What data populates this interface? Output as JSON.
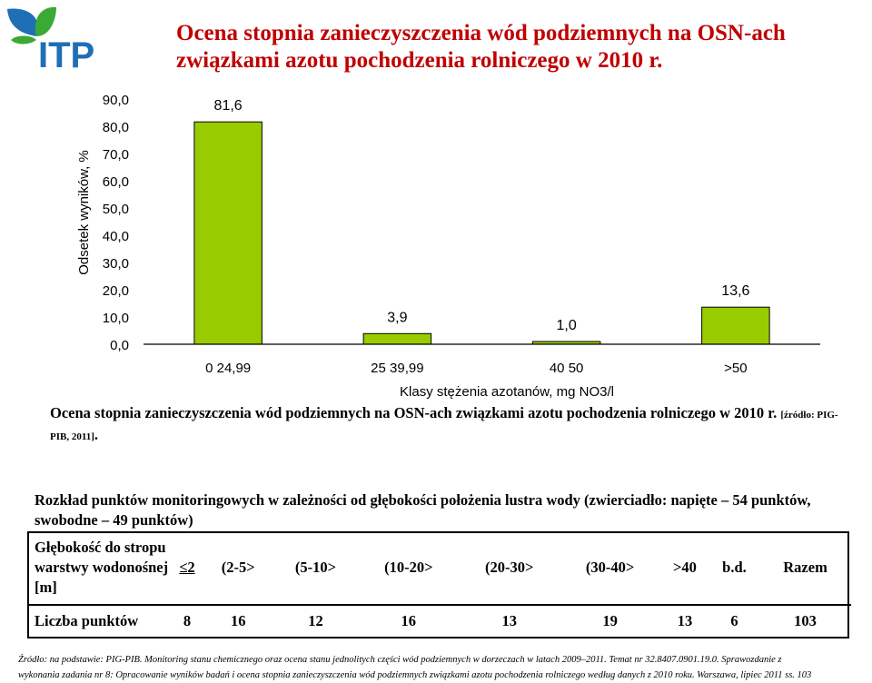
{
  "logo": {
    "text": "ITP",
    "colors": {
      "leaf_blue": "#1f6fb5",
      "leaf_green": "#3aaa35",
      "text": "#1f6fb5"
    }
  },
  "title": "Ocena stopnia zanieczyszczenia wód podziemnych na OSN-ach związkami azotu pochodzenia rolniczego w 2010 r.",
  "chart_data": {
    "type": "bar",
    "categories": [
      "0 24,99",
      "25 39,99",
      "40 50",
      ">50"
    ],
    "values": [
      81.6,
      3.9,
      1.0,
      13.6
    ],
    "value_labels": [
      "81,6",
      "3,9",
      "1,0",
      "13,6"
    ],
    "ylim": [
      0,
      90
    ],
    "yticks": [
      "0,0",
      "10,0",
      "20,0",
      "30,0",
      "40,0",
      "50,0",
      "60,0",
      "70,0",
      "80,0",
      "90,0"
    ],
    "xlabel": "Klasy stężenia azotanów, mg NO3/l",
    "ylabel": "Odsetek wyników, %",
    "bar_color": "#99cc00",
    "grid": false
  },
  "caption": {
    "text": "Ocena stopnia zanieczyszczenia wód podziemnych na OSN-ach związkami azotu pochodzenia rolniczego w 2010 r. ",
    "source": "[źródło: PIG-PIB, 2011]",
    "end": "."
  },
  "section": {
    "text": "Rozkład punktów monitoringowych w zależności od głębokości położenia lustra wody (zwierciadło: napięte – 54 punktów, swobodne – 49 punktów)"
  },
  "table": {
    "header_label": "Głębokość do stropu warstwy wodonośnej [m]",
    "columns": [
      "≤2",
      "(2-5>",
      "(5-10>",
      "(10-20>",
      "(20-30>",
      "(30-40>",
      ">40",
      "b.d.",
      "Razem"
    ],
    "row_label": "Liczba punktów",
    "values": [
      "8",
      "16",
      "12",
      "16",
      "13",
      "19",
      "13",
      "6",
      "103"
    ]
  },
  "footer": {
    "line1": "Źródło: na podstawie: PIG-PIB. Monitoring stanu chemicznego oraz ocena stanu jednolitych części wód podziemnych w dorzeczach w latach 2009–2011. Temat nr 32.8407.0901.19.0. Sprawozdanie z",
    "line2": "wykonania zadania nr 8: Opracowanie wyników badań i ocena stopnia zanieczyszczenia wód podziemnych związkami azotu pochodzenia rolniczego według danych z 2010 roku. Warszawa, lipiec 2011 ss. 103"
  }
}
